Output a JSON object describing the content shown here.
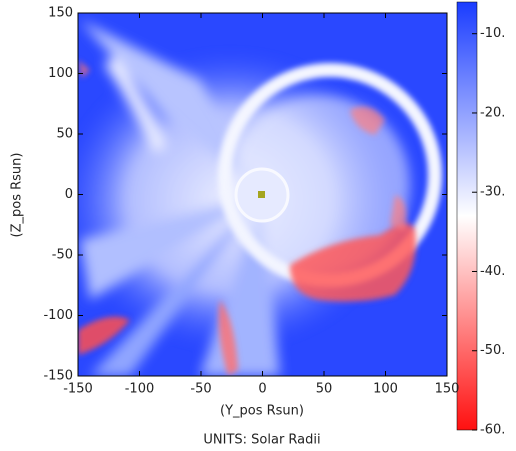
{
  "chart_data": {
    "type": "heatmap",
    "x_label": "(Y_pos Rsun)",
    "y_label": "(Z_pos Rsun)",
    "footer": "UNITS: Solar Radii",
    "xlim": [
      -150,
      150
    ],
    "xticks": [
      -150,
      -100,
      -50,
      0,
      50,
      100,
      150
    ],
    "ylim": [
      -150,
      150
    ],
    "yticks": [
      -150,
      -100,
      -50,
      0,
      50,
      100,
      150
    ],
    "colorbar": {
      "lim": [
        -60,
        -6
      ],
      "colors": [
        "#ff1010",
        "#ffffff",
        "#1a3cff"
      ],
      "ticks": [
        {
          "value": -10,
          "label": "-10."
        },
        {
          "value": -20,
          "label": "-20."
        },
        {
          "value": -30,
          "label": "-30."
        },
        {
          "value": -40,
          "label": "-40."
        },
        {
          "value": -50,
          "label": "-50."
        },
        {
          "value": -60,
          "label": "-60."
        }
      ]
    }
  }
}
